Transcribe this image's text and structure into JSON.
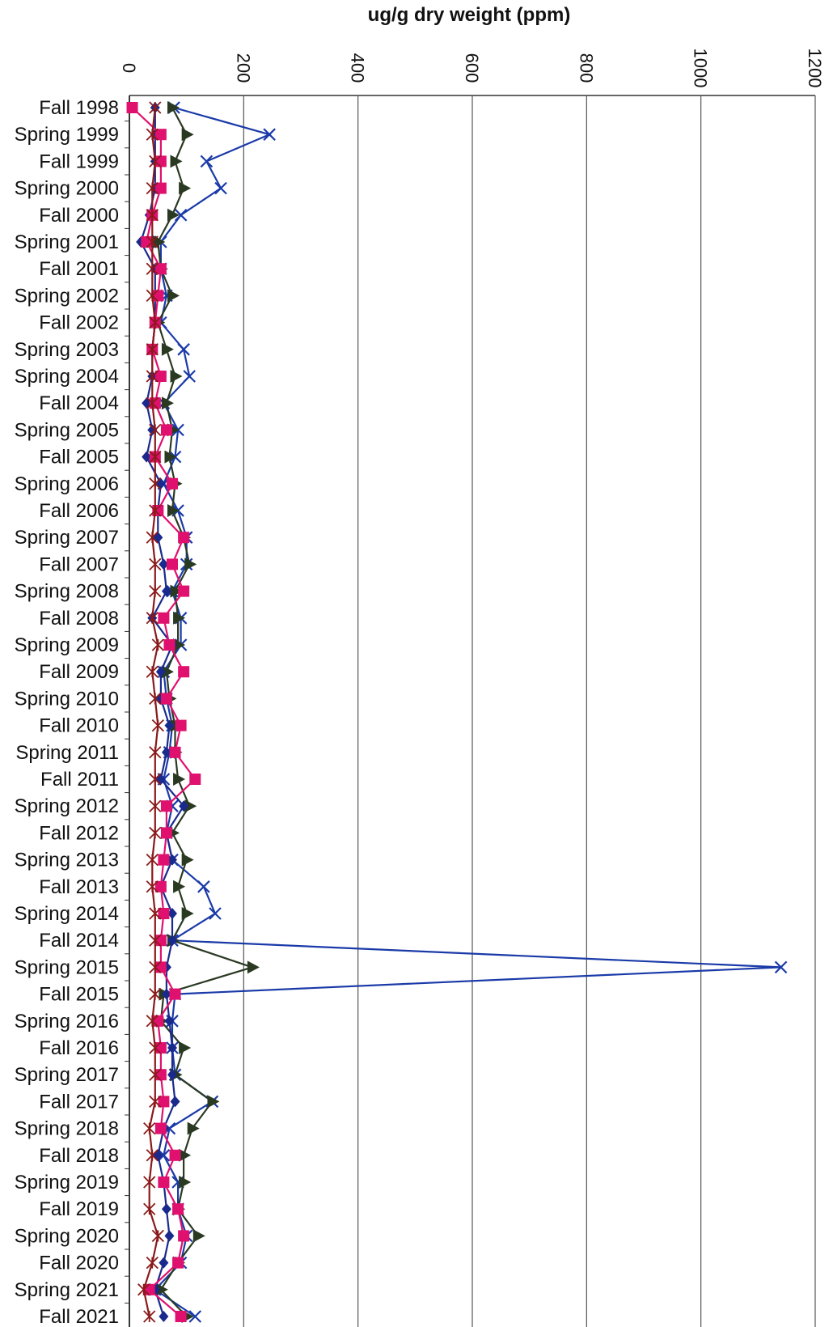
{
  "chart_data": {
    "type": "line",
    "title": "",
    "xlabel": "ug/g dry weight (ppm)",
    "xlim": [
      0,
      1200
    ],
    "xticks": [
      0,
      200,
      400,
      600,
      800,
      1000,
      1200
    ],
    "xtick_labels": [
      "0",
      "200",
      "400",
      "600",
      "800",
      "1000",
      "1200"
    ],
    "grid": true,
    "orientation": "horizontal",
    "categories": [
      "Fall 1998",
      "Spring 1999",
      "Fall 1999",
      "Spring 2000",
      "Fall 2000",
      "Spring 2001",
      "Fall 2001",
      "Spring 2002",
      "Fall 2002",
      "Spring 2003",
      "Spring 2004",
      "Fall 2004",
      "Spring 2005",
      "Fall 2005",
      "Spring 2006",
      "Fall 2006",
      "Spring 2007",
      "Fall 2007",
      "Spring 2008",
      "Fall 2008",
      "Spring 2009",
      "Fall 2009",
      "Spring 2010",
      "Fall 2010",
      "Spring 2011",
      "Fall 2011",
      "Spring 2012",
      "Fall 2012",
      "Spring 2013",
      "Fall 2013",
      "Spring 2014",
      "Fall 2014",
      "Spring 2015",
      "Fall 2015",
      "Spring 2016",
      "Fall 2016",
      "Spring 2017",
      "Fall 2017",
      "Spring 2018",
      "Fall 2018",
      "Spring 2019",
      "Fall 2019",
      "Spring 2020",
      "Fall 2020",
      "Spring 2021",
      "Fall 2021"
    ],
    "series": [
      {
        "marker": "x",
        "color": "#1a3aa8",
        "values": [
          78,
          245,
          135,
          160,
          90,
          55,
          55,
          65,
          55,
          95,
          105,
          60,
          85,
          80,
          60,
          85,
          100,
          100,
          75,
          90,
          90,
          60,
          65,
          75,
          70,
          60,
          75,
          65,
          75,
          130,
          150,
          75,
          1140,
          80,
          75,
          75,
          80,
          145,
          70,
          60,
          85,
          85,
          100,
          90,
          45,
          115
        ]
      },
      {
        "marker": "triangle",
        "color": "#2a3a22",
        "values": [
          75,
          100,
          80,
          95,
          75,
          50,
          55,
          75,
          50,
          65,
          80,
          65,
          75,
          70,
          80,
          75,
          95,
          105,
          80,
          85,
          85,
          65,
          70,
          80,
          80,
          85,
          105,
          75,
          100,
          85,
          100,
          75,
          215,
          60,
          55,
          95,
          80,
          145,
          110,
          95,
          95,
          85,
          120,
          85,
          55,
          100
        ]
      },
      {
        "marker": "diamond",
        "color": "#1a2a8c",
        "values": [
          45,
          45,
          45,
          45,
          35,
          20,
          45,
          45,
          45,
          40,
          40,
          30,
          40,
          30,
          55,
          50,
          50,
          60,
          65,
          40,
          75,
          55,
          55,
          70,
          65,
          55,
          95,
          65,
          75,
          55,
          75,
          75,
          65,
          65,
          70,
          75,
          75,
          80,
          60,
          50,
          60,
          65,
          70,
          60,
          45,
          60
        ]
      },
      {
        "marker": "square",
        "color": "#e0106e",
        "values": [
          5,
          55,
          55,
          55,
          40,
          30,
          55,
          50,
          45,
          40,
          55,
          45,
          65,
          45,
          75,
          50,
          95,
          75,
          95,
          60,
          70,
          95,
          65,
          90,
          80,
          115,
          65,
          65,
          60,
          55,
          60,
          55,
          55,
          80,
          50,
          55,
          55,
          60,
          55,
          80,
          60,
          85,
          95,
          85,
          35,
          90
        ]
      },
      {
        "marker": "star",
        "color": "#8a1a1a",
        "values": [
          45,
          40,
          45,
          40,
          40,
          40,
          40,
          40,
          45,
          40,
          40,
          40,
          45,
          45,
          45,
          45,
          40,
          45,
          45,
          40,
          50,
          40,
          45,
          50,
          45,
          45,
          45,
          45,
          40,
          40,
          45,
          45,
          45,
          45,
          40,
          45,
          45,
          45,
          35,
          40,
          35,
          35,
          50,
          40,
          25,
          35
        ]
      }
    ]
  }
}
